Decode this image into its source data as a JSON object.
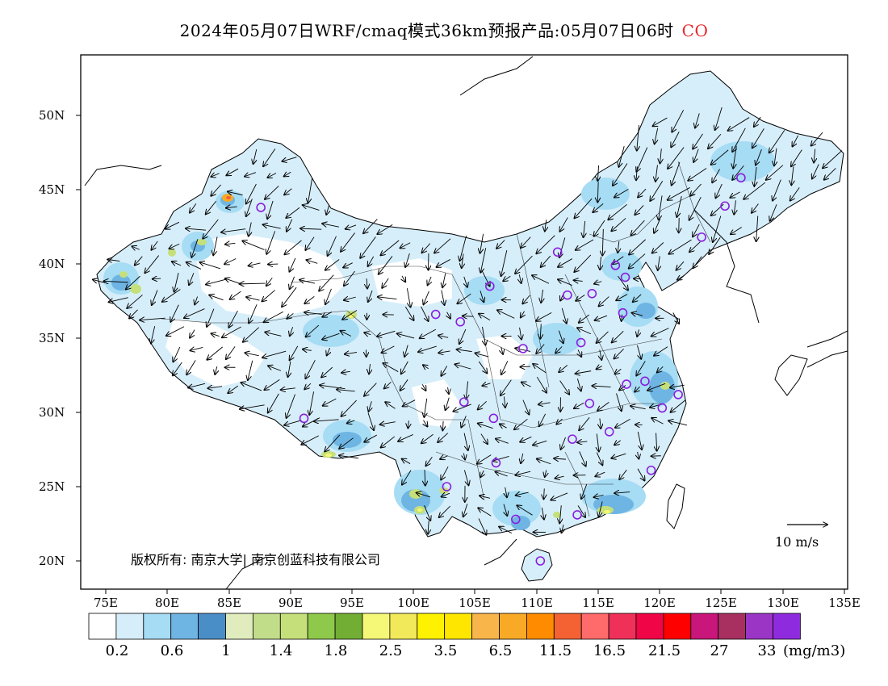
{
  "title": {
    "text": "2024年05月07日WRF/cmaq模式36km预报产品:05月07日06时",
    "species": "CO"
  },
  "copyright": "版权所有: 南京大学| 南京创蓝科技有限公司",
  "wind_scale_label": "10 m/s",
  "axes": {
    "lat_ticks": [
      "50N",
      "45N",
      "40N",
      "35N",
      "30N",
      "25N",
      "20N"
    ],
    "lon_ticks": [
      "75E",
      "80E",
      "85E",
      "90E",
      "95E",
      "100E",
      "105E",
      "110E",
      "115E",
      "120E",
      "125E",
      "130E",
      "135E"
    ]
  },
  "colorbar": {
    "labels": [
      "0.2",
      "0.6",
      "1",
      "1.4",
      "1.8",
      "2.5",
      "3.5",
      "6.5",
      "11.5",
      "16.5",
      "21.5",
      "27",
      "33"
    ],
    "unit": "(mg/m3)",
    "colors": [
      "#ffffff",
      "#d6eefa",
      "#a6dcf4",
      "#6fb5e3",
      "#4a8ec8",
      "#e0ecbd",
      "#c2dd8a",
      "#c5e07a",
      "#8fc94b",
      "#73ae34",
      "#f5f777",
      "#f1e85a",
      "#fff200",
      "#ffe600",
      "#f8b54a",
      "#f8aa27",
      "#ff8c00",
      "#f46233",
      "#ff6b6b",
      "#ef3058",
      "#f00546",
      "#ff0000",
      "#c9167a",
      "#a83060",
      "#9b35c6",
      "#8f2bde"
    ]
  },
  "cities": [
    {
      "lon": 87.6,
      "lat": 43.8
    },
    {
      "lon": 91.1,
      "lat": 29.6
    },
    {
      "lon": 101.8,
      "lat": 36.6
    },
    {
      "lon": 103.8,
      "lat": 36.1
    },
    {
      "lon": 106.2,
      "lat": 38.5
    },
    {
      "lon": 111.7,
      "lat": 40.8
    },
    {
      "lon": 112.5,
      "lat": 37.9
    },
    {
      "lon": 114.5,
      "lat": 38.0
    },
    {
      "lon": 116.4,
      "lat": 39.9
    },
    {
      "lon": 117.2,
      "lat": 39.1
    },
    {
      "lon": 117.0,
      "lat": 36.7
    },
    {
      "lon": 113.6,
      "lat": 34.7
    },
    {
      "lon": 108.9,
      "lat": 34.3
    },
    {
      "lon": 104.1,
      "lat": 30.7
    },
    {
      "lon": 106.5,
      "lat": 29.6
    },
    {
      "lon": 106.7,
      "lat": 26.6
    },
    {
      "lon": 102.7,
      "lat": 25.0
    },
    {
      "lon": 108.3,
      "lat": 22.8
    },
    {
      "lon": 110.3,
      "lat": 20.0
    },
    {
      "lon": 113.3,
      "lat": 23.1
    },
    {
      "lon": 119.3,
      "lat": 26.1
    },
    {
      "lon": 115.9,
      "lat": 28.7
    },
    {
      "lon": 112.9,
      "lat": 28.2
    },
    {
      "lon": 114.3,
      "lat": 30.6
    },
    {
      "lon": 117.3,
      "lat": 31.9
    },
    {
      "lon": 118.8,
      "lat": 32.1
    },
    {
      "lon": 120.2,
      "lat": 30.3
    },
    {
      "lon": 121.5,
      "lat": 31.2
    },
    {
      "lon": 123.4,
      "lat": 41.8
    },
    {
      "lon": 125.3,
      "lat": 43.9
    },
    {
      "lon": 126.6,
      "lat": 45.8
    }
  ]
}
